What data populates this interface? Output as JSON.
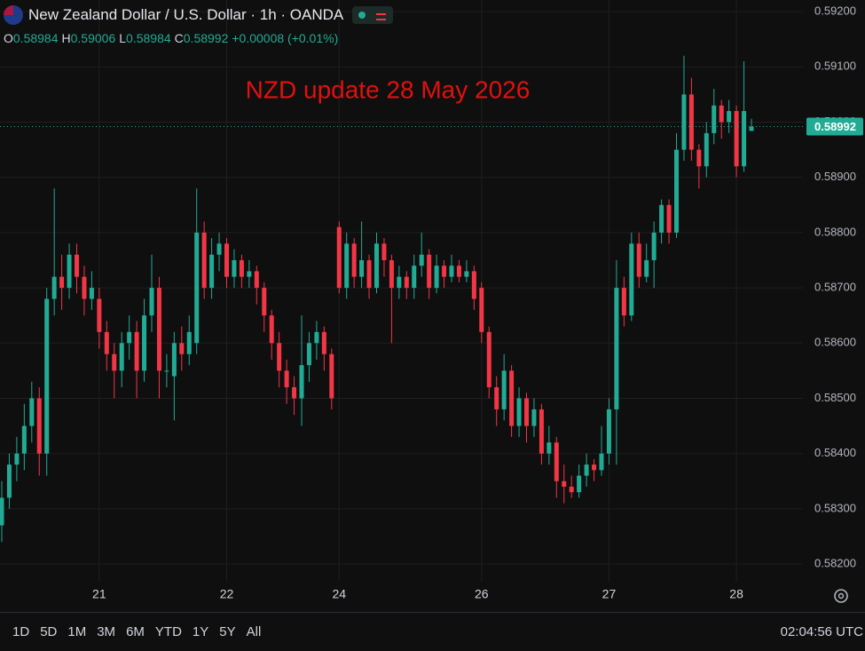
{
  "header": {
    "title": "New Zealand Dollar / U.S. Dollar · 1h · OANDA",
    "ohlc_legend": [
      {
        "label": "O",
        "value": "0.58984"
      },
      {
        "label": "H",
        "value": "0.59006"
      },
      {
        "label": "L",
        "value": "0.58984"
      },
      {
        "label": "C",
        "value": "0.58992"
      }
    ],
    "change": "+0.00008 (+0.01%)"
  },
  "chart_data": {
    "type": "candlestick",
    "annotation": "NZD update 28 May 2026",
    "up_color": "#22ab94",
    "down_color": "#f23645",
    "annotation_color": "#e0110f",
    "grid": true,
    "ylim": [
      0.58168,
      0.59221
    ],
    "yticks": [
      {
        "value": 0.582,
        "label": "0.58200"
      },
      {
        "value": 0.583,
        "label": "0.58300"
      },
      {
        "value": 0.584,
        "label": "0.58400"
      },
      {
        "value": 0.585,
        "label": "0.58500"
      },
      {
        "value": 0.586,
        "label": "0.58600"
      },
      {
        "value": 0.587,
        "label": "0.58700"
      },
      {
        "value": 0.588,
        "label": "0.58800"
      },
      {
        "value": 0.589,
        "label": "0.58900"
      },
      {
        "value": 0.59,
        "label": "0.59000"
      },
      {
        "value": 0.591,
        "label": "0.59100"
      },
      {
        "value": 0.592,
        "label": "0.59200"
      }
    ],
    "last_price": 0.58992,
    "categories": [
      null,
      null,
      null,
      null,
      null,
      null,
      null,
      null,
      null,
      null,
      null,
      null,
      null,
      "21",
      null,
      null,
      null,
      null,
      null,
      null,
      null,
      null,
      null,
      null,
      null,
      null,
      null,
      null,
      null,
      null,
      "22",
      null,
      null,
      null,
      null,
      null,
      null,
      null,
      null,
      null,
      null,
      null,
      null,
      null,
      null,
      "24",
      null,
      null,
      null,
      null,
      null,
      null,
      null,
      null,
      null,
      null,
      null,
      null,
      null,
      null,
      null,
      null,
      null,
      null,
      "26",
      null,
      null,
      null,
      null,
      null,
      null,
      null,
      null,
      null,
      null,
      null,
      null,
      null,
      null,
      null,
      null,
      "27",
      null,
      null,
      null,
      null,
      null,
      null,
      null,
      null,
      null,
      null,
      null,
      null,
      null,
      null,
      null,
      null,
      "28",
      null,
      null
    ],
    "open": [
      0.5827,
      0.5832,
      0.5838,
      0.584,
      0.5845,
      0.585,
      0.584,
      0.5868,
      0.5872,
      0.587,
      0.5876,
      0.5872,
      0.5868,
      0.5868,
      0.5862,
      0.5858,
      0.5855,
      0.586,
      0.5862,
      0.5855,
      0.5865,
      0.587,
      0.5855,
      0.5854,
      0.586,
      0.5858,
      0.586,
      0.588,
      0.587,
      0.5876,
      0.5878,
      0.5872,
      0.5875,
      0.5872,
      0.5873,
      0.587,
      0.5865,
      0.586,
      0.5855,
      0.5852,
      0.585,
      0.5856,
      0.586,
      0.5862,
      0.5858,
      0.5881,
      0.587,
      0.5878,
      0.5872,
      0.5875,
      0.587,
      0.5878,
      0.5875,
      0.587,
      0.5872,
      0.587,
      0.5874,
      0.5876,
      0.587,
      0.5874,
      0.5872,
      0.5874,
      0.5872,
      0.5873,
      0.587,
      0.5862,
      0.5852,
      0.5848,
      0.5855,
      0.5845,
      0.585,
      0.5845,
      0.5848,
      0.584,
      0.5842,
      0.5835,
      0.5834,
      0.5833,
      0.5836,
      0.5838,
      0.5837,
      0.584,
      0.5848,
      0.587,
      0.5865,
      0.5878,
      0.5872,
      0.5875,
      0.588,
      0.5885,
      0.588,
      0.5895,
      0.5905,
      0.5895,
      0.5892,
      0.5898,
      0.5903,
      0.59,
      0.5902,
      0.5892,
      0.58984
    ],
    "high": [
      0.5835,
      0.584,
      0.5843,
      0.5849,
      0.5853,
      0.5852,
      0.587,
      0.5888,
      0.5876,
      0.5878,
      0.5878,
      0.5874,
      0.5873,
      0.587,
      0.5864,
      0.586,
      0.5862,
      0.5865,
      0.5864,
      0.5868,
      0.5876,
      0.5872,
      0.5858,
      0.5862,
      0.5863,
      0.5865,
      0.5888,
      0.5882,
      0.5879,
      0.588,
      0.5879,
      0.5877,
      0.5876,
      0.5875,
      0.5874,
      0.5871,
      0.5866,
      0.5862,
      0.5857,
      0.5854,
      0.5865,
      0.5862,
      0.5864,
      0.5863,
      0.5859,
      0.5882,
      0.588,
      0.5879,
      0.5882,
      0.5876,
      0.588,
      0.5879,
      0.5876,
      0.5874,
      0.5873,
      0.5876,
      0.588,
      0.5877,
      0.5876,
      0.5875,
      0.5876,
      0.5875,
      0.5875,
      0.5874,
      0.5871,
      0.5863,
      0.5854,
      0.5858,
      0.5856,
      0.5852,
      0.5851,
      0.585,
      0.5849,
      0.5845,
      0.5843,
      0.5838,
      0.5836,
      0.5838,
      0.584,
      0.5839,
      0.5845,
      0.585,
      0.5875,
      0.5872,
      0.588,
      0.588,
      0.5878,
      0.5882,
      0.5886,
      0.5886,
      0.5898,
      0.5912,
      0.5908,
      0.5896,
      0.59,
      0.5906,
      0.5904,
      0.5904,
      0.5903,
      0.5911,
      0.59006
    ],
    "low": [
      0.5824,
      0.583,
      0.5835,
      0.5837,
      0.5842,
      0.5836,
      0.5836,
      0.5865,
      0.5866,
      0.5868,
      0.5869,
      0.5865,
      0.5866,
      0.5859,
      0.5855,
      0.585,
      0.5852,
      0.5857,
      0.585,
      0.5853,
      0.5862,
      0.585,
      0.5852,
      0.5846,
      0.5855,
      0.5856,
      0.5858,
      0.5868,
      0.5868,
      0.5873,
      0.587,
      0.587,
      0.587,
      0.587,
      0.5867,
      0.5862,
      0.5857,
      0.5852,
      0.5849,
      0.5847,
      0.5845,
      0.5853,
      0.5857,
      0.5855,
      0.5848,
      0.5869,
      0.5868,
      0.587,
      0.587,
      0.5868,
      0.5869,
      0.5872,
      0.586,
      0.5868,
      0.5868,
      0.5868,
      0.5872,
      0.5868,
      0.5869,
      0.587,
      0.5871,
      0.5871,
      0.5871,
      0.5866,
      0.586,
      0.585,
      0.5845,
      0.5846,
      0.5843,
      0.5843,
      0.5842,
      0.5843,
      0.5838,
      0.5838,
      0.5832,
      0.5831,
      0.5832,
      0.5832,
      0.5834,
      0.5835,
      0.5836,
      0.5838,
      0.5838,
      0.5863,
      0.5864,
      0.587,
      0.5871,
      0.587,
      0.5878,
      0.5878,
      0.5879,
      0.5893,
      0.5893,
      0.5888,
      0.589,
      0.5896,
      0.5897,
      0.5898,
      0.589,
      0.5891,
      0.58984
    ],
    "close": [
      0.5832,
      0.5838,
      0.584,
      0.5845,
      0.585,
      0.584,
      0.5868,
      0.5872,
      0.587,
      0.5876,
      0.5872,
      0.5868,
      0.587,
      0.5862,
      0.5858,
      0.5855,
      0.586,
      0.5862,
      0.5855,
      0.5865,
      0.587,
      0.5855,
      0.5855,
      0.586,
      0.5858,
      0.5862,
      0.588,
      0.587,
      0.5876,
      0.5878,
      0.5872,
      0.5875,
      0.5872,
      0.5873,
      0.587,
      0.5865,
      0.586,
      0.5855,
      0.5852,
      0.585,
      0.5856,
      0.586,
      0.5862,
      0.5858,
      0.585,
      0.587,
      0.5878,
      0.5872,
      0.5875,
      0.587,
      0.5878,
      0.5875,
      0.587,
      0.5872,
      0.587,
      0.5874,
      0.5876,
      0.587,
      0.5874,
      0.5872,
      0.5874,
      0.5872,
      0.5873,
      0.5868,
      0.5862,
      0.5852,
      0.5848,
      0.5855,
      0.5845,
      0.585,
      0.5845,
      0.5848,
      0.584,
      0.5842,
      0.5835,
      0.5834,
      0.5833,
      0.5836,
      0.5838,
      0.5837,
      0.584,
      0.5848,
      0.587,
      0.5865,
      0.5878,
      0.5872,
      0.5875,
      0.588,
      0.5885,
      0.588,
      0.5895,
      0.5905,
      0.5895,
      0.5892,
      0.5898,
      0.5903,
      0.59,
      0.5902,
      0.5892,
      0.5902,
      0.58992
    ]
  },
  "toolbar": {
    "timeframes": [
      "1D",
      "5D",
      "1M",
      "3M",
      "6M",
      "YTD",
      "1Y",
      "5Y",
      "All"
    ],
    "clock": "02:04:56 UTC"
  }
}
